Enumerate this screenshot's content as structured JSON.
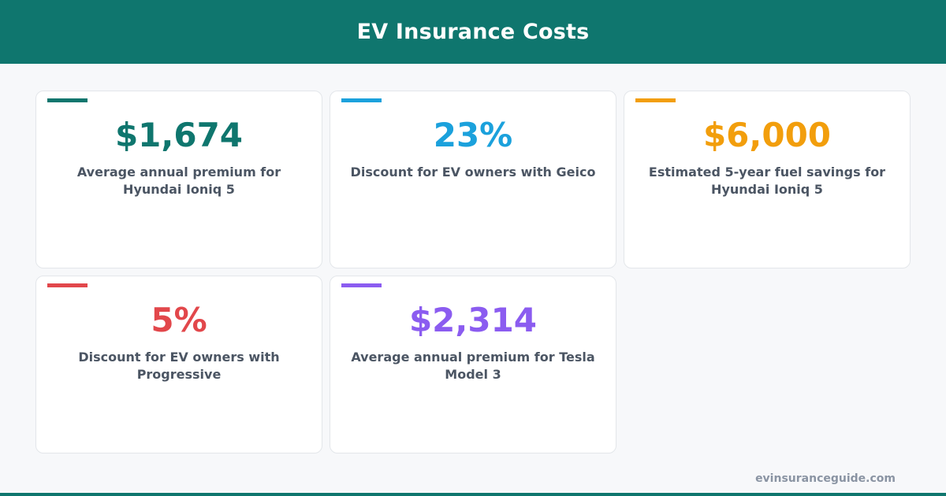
{
  "header": {
    "title": "EV Insurance Costs"
  },
  "cards": [
    {
      "value": "$1,674",
      "desc": "Average annual premium for Hyundai Ioniq 5",
      "color": "#0f766e"
    },
    {
      "value": "23%",
      "desc": "Discount for EV owners with Geico",
      "color": "#1ba1dc"
    },
    {
      "value": "$6,000",
      "desc": "Estimated 5-year fuel savings for Hyundai Ioniq 5",
      "color": "#f29e0c"
    },
    {
      "value": "5%",
      "desc": "Discount for EV owners with Progressive",
      "color": "#e2474b"
    },
    {
      "value": "$2,314",
      "desc": "Average annual premium for Tesla Model 3",
      "color": "#8b5cf0"
    }
  ],
  "footer": {
    "url": "evinsuranceguide.com"
  },
  "colors": {
    "brand": "#0f766e",
    "background": "#f7f8fa"
  }
}
